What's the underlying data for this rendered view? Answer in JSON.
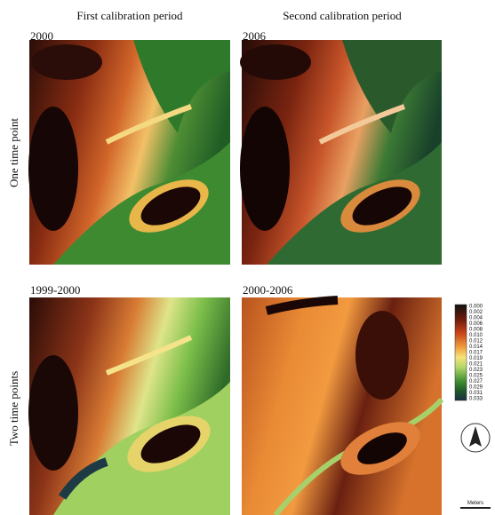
{
  "header": {
    "columns": [
      "First calibration period",
      "Second calibration period"
    ],
    "rows": [
      "One time point",
      "Two time points"
    ]
  },
  "panels": [
    {
      "label": "2000"
    },
    {
      "label": "2006"
    },
    {
      "label": "1999-2000"
    },
    {
      "label": "2000-2006"
    }
  ],
  "legend": {
    "labels": [
      "0.000",
      "0.002",
      "0.004",
      "0.006",
      "0.008",
      "0.010",
      "0.012",
      "0.014",
      "0.017",
      "0.019",
      "0.021",
      "0.023",
      "0.025",
      "0.027",
      "0.029",
      "0.031",
      "0.033"
    ]
  },
  "scale": {
    "unit": "Meters"
  }
}
